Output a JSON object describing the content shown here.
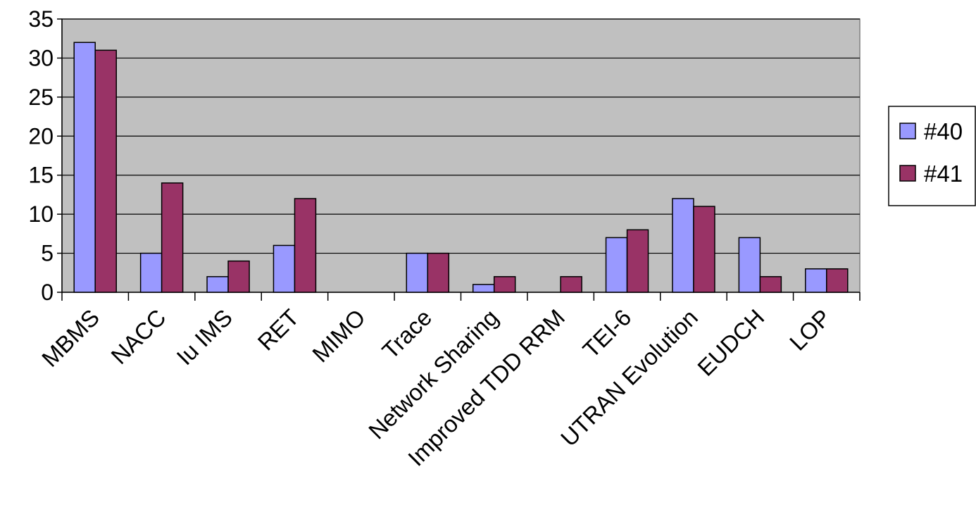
{
  "chart_data": {
    "type": "bar",
    "title": "",
    "xlabel": "",
    "ylabel": "",
    "ylim": [
      0,
      35
    ],
    "yticks": [
      0,
      5,
      10,
      15,
      20,
      25,
      30,
      35
    ],
    "grid": true,
    "legend_position": "right",
    "categories": [
      "MBMS",
      "NACC",
      "Iu IMS",
      "RET",
      "MIMO",
      "Trace",
      "Network Sharing",
      "Improved TDD RRM",
      "TEI-6",
      "UTRAN Evolution",
      "EUDCH",
      "LOP"
    ],
    "series": [
      {
        "name": "#40",
        "color": "#9999ff",
        "values": [
          32,
          5,
          2,
          6,
          0,
          5,
          1,
          0,
          7,
          12,
          7,
          3
        ]
      },
      {
        "name": "#41",
        "color": "#993366",
        "values": [
          31,
          14,
          4,
          12,
          0,
          5,
          2,
          2,
          8,
          11,
          2,
          3
        ]
      }
    ],
    "plot_background": "#c0c0c0"
  }
}
